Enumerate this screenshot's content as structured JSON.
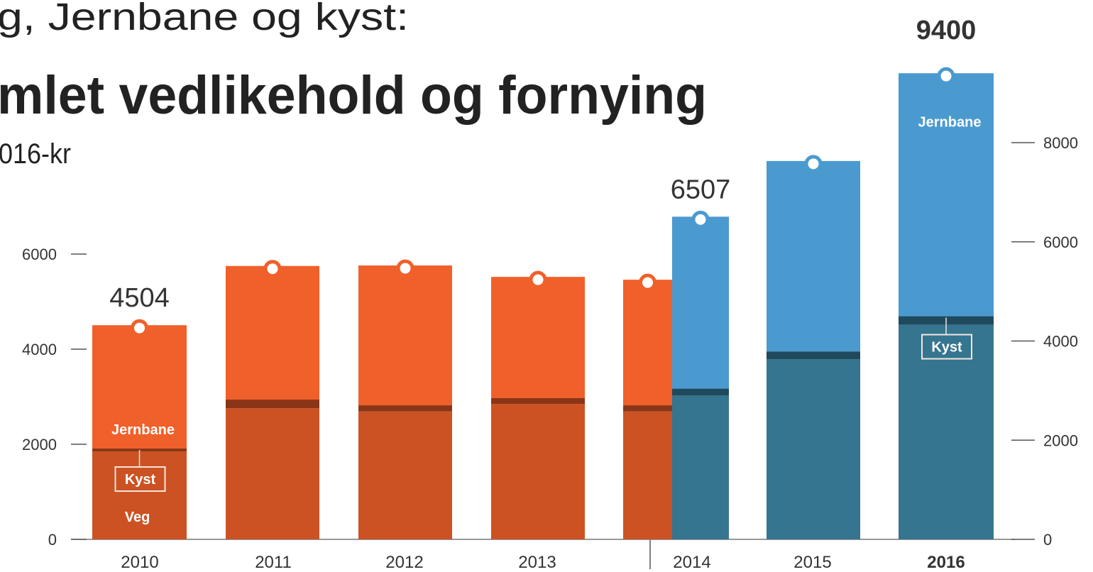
{
  "chart_data": {
    "type": "stacked-bar",
    "title": "g, Jernbane og kyst:",
    "subtitle": "mlet vedlikehold og fornying",
    "unit_label": "016-kr",
    "categories": [
      "2010",
      "2011",
      "2012",
      "2013",
      "2014",
      "2015",
      "2016"
    ],
    "series": [
      {
        "name": "Veg",
        "color": "#cc5223",
        "axis": "y",
        "values": [
          1850,
          2760,
          2690,
          2850,
          2690,
          null,
          null
        ]
      },
      {
        "name": "Kyst",
        "color": "#8a3517",
        "axis": "y",
        "values": [
          60,
          180,
          130,
          120,
          130,
          null,
          null
        ]
      },
      {
        "name": "Jernbane",
        "color": "#f0602a",
        "axis": "y",
        "values": [
          2594,
          2810,
          2940,
          2550,
          2640,
          null,
          null
        ]
      },
      {
        "name": "Veg",
        "color": "#357590",
        "axis": "y2",
        "values": [
          null,
          null,
          null,
          null,
          2900,
          3630,
          4330
        ]
      },
      {
        "name": "Kyst",
        "color": "#1f4a5e",
        "axis": "y2",
        "values": [
          null,
          null,
          null,
          null,
          140,
          160,
          170
        ]
      },
      {
        "name": "Jernbane",
        "color": "#4a9ad0",
        "axis": "y2",
        "values": [
          null,
          null,
          null,
          null,
          3467,
          3840,
          4900
        ]
      }
    ],
    "totals": [
      {
        "category": "2010",
        "axis": "y",
        "value": 4504
      },
      {
        "category": "2014",
        "axis": "y2",
        "value": 6507
      },
      {
        "category": "2016",
        "axis": "y2",
        "value": 9400
      }
    ],
    "ylim": [
      0,
      6000
    ],
    "yticks": [
      0,
      2000,
      4000,
      6000
    ],
    "y2lim": [
      0,
      8000
    ],
    "y2ticks": [
      0,
      2000,
      4000,
      6000,
      8000
    ]
  }
}
